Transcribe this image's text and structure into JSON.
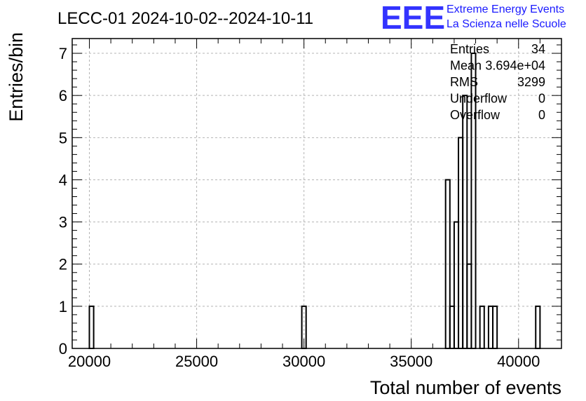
{
  "chart_data": {
    "type": "bar",
    "title": "LECC-01 2024-10-02--2024-10-11",
    "xlabel": "Total number of events",
    "ylabel": "Entries/bin",
    "xlim": [
      19200,
      42000
    ],
    "ylim": [
      0,
      7.35
    ],
    "bin_width": 200,
    "x_ticks": [
      20000,
      25000,
      30000,
      35000,
      40000
    ],
    "y_ticks": [
      0,
      1,
      2,
      3,
      4,
      5,
      6,
      7
    ],
    "grid": true,
    "bins": [
      {
        "low": 20000,
        "count": 1
      },
      {
        "low": 29900,
        "count": 1
      },
      {
        "low": 36600,
        "count": 4
      },
      {
        "low": 36800,
        "count": 1
      },
      {
        "low": 37000,
        "count": 3
      },
      {
        "low": 37200,
        "count": 5
      },
      {
        "low": 37400,
        "count": 6
      },
      {
        "low": 37600,
        "count": 2
      },
      {
        "low": 37800,
        "count": 7
      },
      {
        "low": 38200,
        "count": 1
      },
      {
        "low": 38600,
        "count": 1
      },
      {
        "low": 38800,
        "count": 1
      },
      {
        "low": 40800,
        "count": 1
      }
    ],
    "stats": [
      {
        "label": "Entries",
        "value": "34"
      },
      {
        "label": "Mean",
        "value": "3.694e+04"
      },
      {
        "label": "RMS",
        "value": "3299"
      },
      {
        "label": "Underflow",
        "value": "0"
      },
      {
        "label": "Overflow",
        "value": "0"
      }
    ]
  },
  "logo": {
    "mark": "EEE",
    "line1": "Extreme Energy Events",
    "line2": "La Scienza nelle Scuole",
    "color": "#1a1aff"
  }
}
